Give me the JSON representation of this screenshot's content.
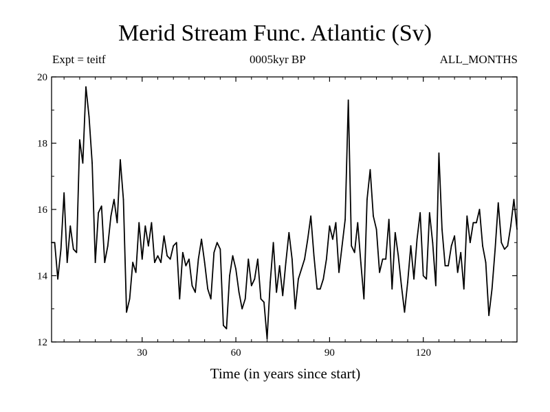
{
  "header": {
    "title": "Merid Stream Func. Atlantic (Sv)",
    "experiment": "Expt = teitf",
    "period": "0005kyr BP",
    "months": "ALL_MONTHS"
  },
  "chart_data": {
    "type": "line",
    "title": "Merid Stream Func. Atlantic (Sv)",
    "xlabel": "Time (in years since start)",
    "ylabel": "",
    "xlim": [
      1,
      150
    ],
    "ylim": [
      12,
      20
    ],
    "xticks": [
      30,
      60,
      90,
      120
    ],
    "yticks": [
      12,
      14,
      16,
      18,
      20
    ],
    "grid": false,
    "series": [
      {
        "name": "Merid Stream Func. Atlantic",
        "x": [
          1,
          2,
          3,
          4,
          5,
          6,
          7,
          8,
          9,
          10,
          11,
          12,
          13,
          14,
          15,
          16,
          17,
          18,
          19,
          20,
          21,
          22,
          23,
          24,
          25,
          26,
          27,
          28,
          29,
          30,
          31,
          32,
          33,
          34,
          35,
          36,
          37,
          38,
          39,
          40,
          41,
          42,
          43,
          44,
          45,
          46,
          47,
          48,
          49,
          50,
          51,
          52,
          53,
          54,
          55,
          56,
          57,
          58,
          59,
          60,
          61,
          62,
          63,
          64,
          65,
          66,
          67,
          68,
          69,
          70,
          71,
          72,
          73,
          74,
          75,
          76,
          77,
          78,
          79,
          80,
          81,
          82,
          83,
          84,
          85,
          86,
          87,
          88,
          89,
          90,
          91,
          92,
          93,
          94,
          95,
          96,
          97,
          98,
          99,
          100,
          101,
          102,
          103,
          104,
          105,
          106,
          107,
          108,
          109,
          110,
          111,
          112,
          113,
          114,
          115,
          116,
          117,
          118,
          119,
          120,
          121,
          122,
          123,
          124,
          125,
          126,
          127,
          128,
          129,
          130,
          131,
          132,
          133,
          134,
          135,
          136,
          137,
          138,
          139,
          140,
          141,
          142,
          143,
          144,
          145,
          146,
          147,
          148,
          149,
          150
        ],
        "values": [
          15.0,
          15.0,
          13.9,
          14.8,
          16.5,
          14.4,
          15.5,
          14.8,
          14.7,
          18.1,
          17.4,
          19.7,
          18.8,
          17.4,
          14.4,
          15.9,
          16.1,
          14.4,
          14.9,
          15.8,
          16.3,
          15.6,
          17.5,
          16.3,
          12.9,
          13.3,
          14.4,
          14.1,
          15.6,
          14.5,
          15.5,
          14.9,
          15.6,
          14.4,
          14.6,
          14.4,
          15.2,
          14.6,
          14.5,
          14.9,
          15.0,
          13.3,
          14.7,
          14.3,
          14.5,
          13.7,
          13.5,
          14.5,
          15.1,
          14.4,
          13.6,
          13.3,
          14.7,
          15.0,
          14.8,
          12.5,
          12.4,
          14.0,
          14.6,
          14.2,
          13.5,
          13.0,
          13.3,
          14.5,
          13.7,
          13.9,
          14.5,
          13.3,
          13.2,
          12.1,
          13.8,
          15.0,
          13.5,
          14.3,
          13.4,
          14.4,
          15.3,
          14.5,
          13.0,
          13.9,
          14.2,
          14.5,
          15.1,
          15.8,
          14.6,
          13.6,
          13.6,
          13.9,
          14.5,
          15.5,
          15.1,
          15.6,
          14.1,
          14.9,
          15.7,
          19.3,
          14.9,
          14.7,
          15.6,
          14.4,
          13.3,
          16.3,
          17.2,
          15.8,
          15.4,
          14.1,
          14.5,
          14.5,
          15.7,
          13.6,
          15.3,
          14.6,
          13.7,
          12.9,
          13.8,
          14.9,
          13.9,
          15.1,
          15.9,
          14.0,
          13.9,
          15.9,
          15.0,
          13.7,
          17.7,
          15.4,
          14.3,
          14.3,
          14.9,
          15.2,
          14.1,
          14.7,
          13.6,
          15.8,
          15.0,
          15.6,
          15.6,
          16.0,
          14.9,
          14.4,
          12.8,
          13.6,
          14.8,
          16.2,
          15.0,
          14.8,
          14.9,
          15.5,
          16.3,
          15.4
        ]
      }
    ]
  }
}
